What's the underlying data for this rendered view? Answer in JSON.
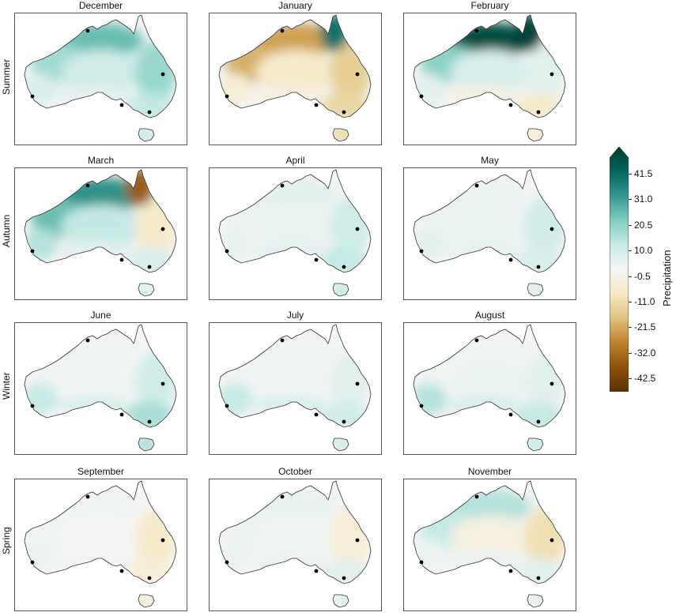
{
  "seasons": [
    {
      "label": "Summer",
      "months": [
        {
          "label": "December",
          "anomaly": {
            "north": 22,
            "northwest": 15,
            "interior": 8,
            "east": 16,
            "southeast": 10,
            "south": 4,
            "west": 6
          }
        },
        {
          "label": "January",
          "anomaly": {
            "north": -24,
            "northwest": -22,
            "interior": -8,
            "east": -16,
            "southeast": -14,
            "south": -4,
            "west": -6,
            "northeast": 36
          }
        },
        {
          "label": "February",
          "anomaly": {
            "north": 44,
            "northwest": 18,
            "interior": 6,
            "east": 4,
            "southeast": -8,
            "south": -4,
            "west": 4,
            "northeast": 46
          }
        }
      ]
    },
    {
      "label": "Autumn",
      "months": [
        {
          "label": "March",
          "anomaly": {
            "north": 30,
            "northwest": 22,
            "interior": 10,
            "east": -8,
            "southeast": 6,
            "south": 4,
            "west": 12,
            "northeast": -36
          }
        },
        {
          "label": "April",
          "anomaly": {
            "north": 4,
            "northwest": 2,
            "interior": 2,
            "east": 8,
            "southeast": 10,
            "south": 4,
            "west": 3
          }
        },
        {
          "label": "May",
          "anomaly": {
            "north": 2,
            "northwest": 2,
            "interior": 2,
            "east": 8,
            "southeast": 6,
            "south": 3,
            "west": 4
          }
        }
      ]
    },
    {
      "label": "Winter",
      "months": [
        {
          "label": "June",
          "anomaly": {
            "north": 1,
            "northwest": 1,
            "interior": 1,
            "east": 8,
            "southeast": 14,
            "south": 6,
            "west": 10
          }
        },
        {
          "label": "July",
          "anomaly": {
            "north": 1,
            "northwest": 1,
            "interior": 1,
            "east": 4,
            "southeast": 8,
            "south": 6,
            "west": 10
          }
        },
        {
          "label": "August",
          "anomaly": {
            "north": 1,
            "northwest": 1,
            "interior": 2,
            "east": 4,
            "southeast": 10,
            "south": 6,
            "west": 12
          }
        }
      ]
    },
    {
      "label": "Spring",
      "months": [
        {
          "label": "September",
          "anomaly": {
            "north": 1,
            "northwest": 1,
            "interior": 0,
            "east": -8,
            "southeast": -6,
            "south": 1,
            "west": 2
          }
        },
        {
          "label": "October",
          "anomaly": {
            "north": 3,
            "northwest": 2,
            "interior": 1,
            "east": -6,
            "southeast": 4,
            "south": 2,
            "west": 2
          }
        },
        {
          "label": "November",
          "anomaly": {
            "north": 12,
            "northwest": 10,
            "interior": -4,
            "east": -12,
            "southeast": 4,
            "south": 2,
            "west": 2
          }
        }
      ]
    }
  ],
  "colorbar": {
    "label": "Precipitation",
    "ticks": [
      "41.5",
      "31.0",
      "20.5",
      "10.0",
      "-0.5",
      "-11.0",
      "-21.5",
      "-32.0",
      "-42.5"
    ],
    "range": [
      -48,
      48
    ],
    "stops": [
      "#5a3206",
      "#8c510a",
      "#bf812d",
      "#dfc27d",
      "#f6e8c3",
      "#f5f5f5",
      "#c7eae5",
      "#80cdc1",
      "#35978f",
      "#01665e",
      "#003c30"
    ]
  }
}
